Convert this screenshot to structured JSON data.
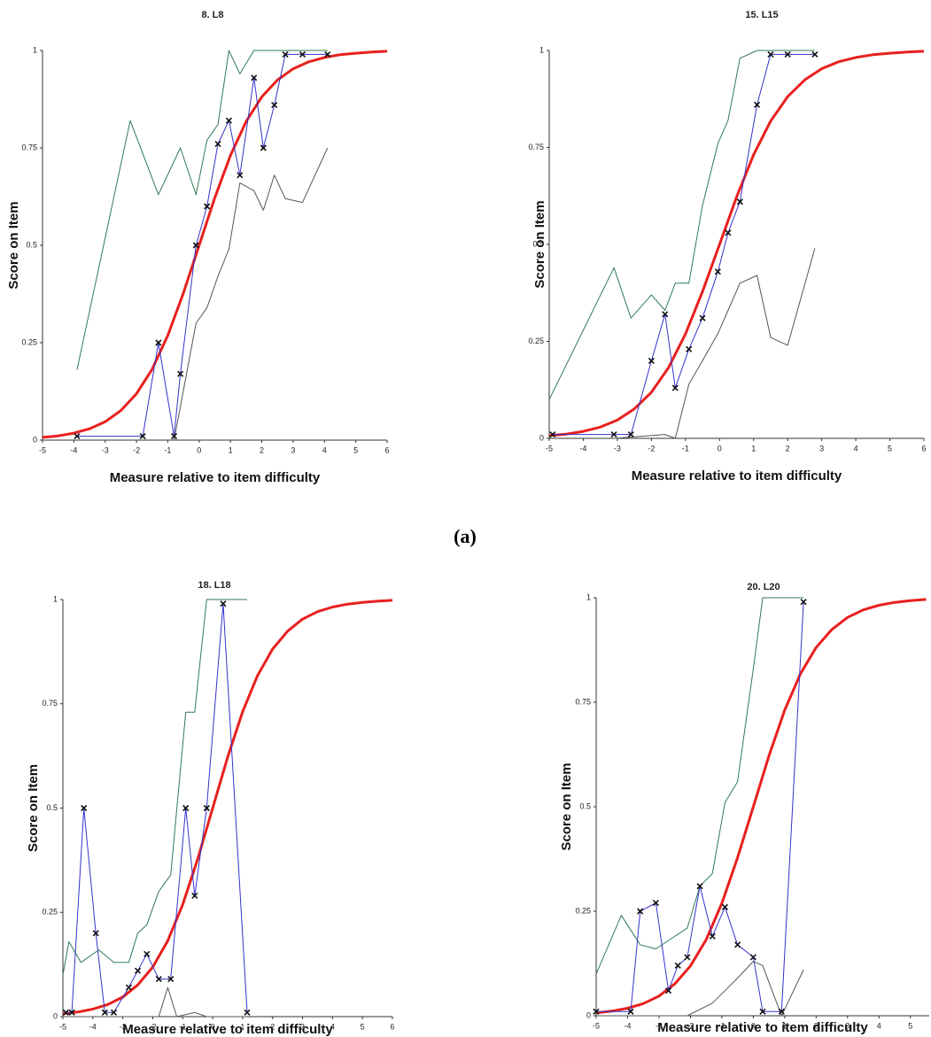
{
  "chart_data": [
    {
      "type": "line",
      "title": "8. L8",
      "xlabel": "Measure relative to item difficulty",
      "ylabel": "Score on Item",
      "xlim": [
        -5,
        6
      ],
      "xticks": [
        -5,
        -4,
        -3,
        -2,
        -1,
        0,
        1,
        2,
        3,
        4,
        5,
        6
      ],
      "ylim": [
        0,
        1
      ],
      "yticks": [
        0,
        0.25,
        0.5,
        0.75,
        1
      ],
      "series": [
        {
          "color": "#2f7a55",
          "x": [
            -3.9,
            -2.2,
            -1.3,
            -0.6,
            -0.1,
            0.25,
            0.6,
            0.95,
            1.3,
            1.75,
            4.1
          ],
          "values": [
            0.18,
            0.82,
            0.63,
            0.75,
            0.63,
            0.77,
            0.81,
            1.0,
            0.94,
            1.0,
            1.0
          ]
        },
        {
          "color": "#555555",
          "x": [
            -0.8,
            -0.1,
            0.25,
            0.6,
            0.95,
            1.3,
            1.75,
            2.05,
            2.4,
            2.75,
            3.3,
            4.1
          ],
          "values": [
            0.0,
            0.3,
            0.34,
            0.42,
            0.49,
            0.66,
            0.64,
            0.59,
            0.68,
            0.62,
            0.61,
            0.75
          ]
        },
        {
          "color": "#e8201e",
          "width": 3,
          "x": [
            -5,
            -4.5,
            -4,
            -3.5,
            -3,
            -2.5,
            -2,
            -1.5,
            -1,
            -0.5,
            0,
            0.5,
            1,
            1.5,
            2,
            2.5,
            3,
            3.5,
            4,
            4.5,
            5,
            5.5,
            6
          ],
          "values": [
            0.007,
            0.011,
            0.018,
            0.029,
            0.047,
            0.076,
            0.119,
            0.182,
            0.269,
            0.378,
            0.5,
            0.622,
            0.731,
            0.818,
            0.881,
            0.924,
            0.953,
            0.971,
            0.982,
            0.989,
            0.993,
            0.996,
            0.998
          ]
        },
        {
          "color": "#3333cc",
          "marker": "x",
          "x": [
            -3.9,
            -1.8,
            -1.3,
            -0.8,
            -0.6,
            -0.1,
            0.25,
            0.6,
            0.95,
            1.3,
            1.75,
            2.05,
            2.4,
            2.75,
            3.3,
            4.1
          ],
          "values": [
            0.01,
            0.01,
            0.25,
            0.01,
            0.17,
            0.5,
            0.6,
            0.76,
            0.82,
            0.68,
            0.93,
            0.75,
            0.86,
            0.99,
            0.99,
            0.99
          ]
        }
      ]
    },
    {
      "type": "line",
      "title": "15. L15",
      "xlabel": "Measure relative to item difficulty",
      "ylabel": "Score on Item",
      "xlim": [
        -5,
        6
      ],
      "xticks": [
        -5,
        -4,
        -3,
        -2,
        -1,
        0,
        1,
        2,
        3,
        4,
        5,
        6
      ],
      "ylim": [
        0,
        1
      ],
      "yticks": [
        0,
        0.25,
        0.5,
        0.75,
        1
      ],
      "series": [
        {
          "color": "#2f7a55",
          "x": [
            -5,
            -3.1,
            -2.6,
            -2.0,
            -1.6,
            -1.3,
            -0.9,
            -0.5,
            -0.05,
            0.25,
            0.6,
            1.1,
            2.8
          ],
          "values": [
            0.1,
            0.44,
            0.31,
            0.37,
            0.33,
            0.4,
            0.4,
            0.6,
            0.76,
            0.82,
            0.98,
            1.0,
            1.0
          ]
        },
        {
          "color": "#555555",
          "x": [
            -3.1,
            -1.6,
            -1.3,
            -0.9,
            -0.5,
            -0.05,
            0.25,
            0.6,
            1.1,
            1.5,
            2.0,
            2.8
          ],
          "values": [
            0.0,
            0.01,
            0.0,
            0.14,
            0.2,
            0.27,
            0.33,
            0.4,
            0.42,
            0.26,
            0.24,
            0.49
          ]
        },
        {
          "color": "#e8201e",
          "width": 3,
          "x": [
            -5,
            -4.5,
            -4,
            -3.5,
            -3,
            -2.5,
            -2,
            -1.5,
            -1,
            -0.5,
            0,
            0.5,
            1,
            1.5,
            2,
            2.5,
            3,
            3.5,
            4,
            4.5,
            5,
            5.5,
            6
          ],
          "values": [
            0.007,
            0.011,
            0.018,
            0.029,
            0.047,
            0.076,
            0.119,
            0.182,
            0.269,
            0.378,
            0.5,
            0.622,
            0.731,
            0.818,
            0.881,
            0.924,
            0.953,
            0.971,
            0.982,
            0.989,
            0.993,
            0.996,
            0.998
          ]
        },
        {
          "color": "#3333cc",
          "marker": "x",
          "x": [
            -4.9,
            -3.1,
            -2.6,
            -2.0,
            -1.6,
            -1.3,
            -0.9,
            -0.5,
            -0.05,
            0.25,
            0.6,
            1.1,
            1.5,
            2.0,
            2.8
          ],
          "values": [
            0.01,
            0.01,
            0.01,
            0.2,
            0.32,
            0.13,
            0.23,
            0.31,
            0.43,
            0.53,
            0.61,
            0.86,
            0.99,
            0.99,
            0.99
          ]
        }
      ]
    },
    {
      "type": "line",
      "title": "18. L18",
      "xlabel": "Measure relative to item difficulty",
      "ylabel": "Score on Item",
      "xlim": [
        -5,
        6
      ],
      "xticks": [
        -5,
        -4,
        -3,
        -2,
        -1,
        0,
        1,
        2,
        3,
        4,
        5,
        6
      ],
      "ylim": [
        0,
        1
      ],
      "yticks": [
        0,
        0.25,
        0.5,
        0.75,
        1
      ],
      "series": [
        {
          "color": "#2f7a55",
          "x": [
            -5,
            -4.8,
            -4.4,
            -3.8,
            -3.3,
            -2.8,
            -2.5,
            -2.2,
            -1.8,
            -1.4,
            -0.9,
            -0.6,
            -0.2,
            1.15
          ],
          "values": [
            0.1,
            0.18,
            0.13,
            0.16,
            0.13,
            0.13,
            0.2,
            0.22,
            0.3,
            0.34,
            0.73,
            0.73,
            1.0,
            1.0
          ]
        },
        {
          "color": "#555555",
          "x": [
            -5,
            -1.8,
            -1.5,
            -1.2,
            -0.6,
            -0.2,
            1.15
          ],
          "values": [
            0.0,
            0.0,
            0.07,
            0.0,
            0.01,
            0.0,
            0.0
          ]
        },
        {
          "color": "#e8201e",
          "width": 3,
          "x": [
            -5,
            -4.5,
            -4,
            -3.5,
            -3,
            -2.5,
            -2,
            -1.5,
            -1,
            -0.5,
            0,
            0.5,
            1,
            1.5,
            2,
            2.5,
            3,
            3.5,
            4,
            4.5,
            5,
            5.5,
            6
          ],
          "values": [
            0.007,
            0.011,
            0.018,
            0.029,
            0.047,
            0.076,
            0.119,
            0.182,
            0.269,
            0.378,
            0.5,
            0.622,
            0.731,
            0.818,
            0.881,
            0.924,
            0.953,
            0.971,
            0.982,
            0.989,
            0.993,
            0.996,
            0.998
          ]
        },
        {
          "color": "#3333cc",
          "marker": "x",
          "x": [
            -4.9,
            -4.7,
            -4.3,
            -3.9,
            -3.6,
            -3.3,
            -2.8,
            -2.5,
            -2.2,
            -1.8,
            -1.4,
            -0.9,
            -0.6,
            -0.2,
            0.35,
            1.15
          ],
          "values": [
            0.01,
            0.01,
            0.5,
            0.2,
            0.01,
            0.01,
            0.07,
            0.11,
            0.15,
            0.09,
            0.09,
            0.5,
            0.29,
            0.5,
            0.99,
            0.01
          ]
        }
      ]
    },
    {
      "type": "line",
      "title": "20. L20",
      "xlabel": "Measure relative to item difficulty",
      "ylabel": "Score on Item",
      "xlim": [
        -5,
        5.6
      ],
      "xticks": [
        -5,
        -4,
        -3,
        -2,
        -1,
        0,
        1,
        2,
        3,
        4,
        5
      ],
      "ylim": [
        0,
        1
      ],
      "yticks": [
        0,
        0.25,
        0.5,
        0.75,
        1
      ],
      "series": [
        {
          "color": "#2f7a55",
          "x": [
            -5,
            -4.2,
            -3.6,
            -3.1,
            -2.7,
            -2.1,
            -1.7,
            -1.3,
            -0.9,
            -0.5,
            0,
            0.3,
            1.6
          ],
          "values": [
            0.1,
            0.24,
            0.17,
            0.16,
            0.18,
            0.21,
            0.31,
            0.34,
            0.51,
            0.56,
            0.83,
            1.0,
            1.0
          ]
        },
        {
          "color": "#555555",
          "x": [
            -5,
            -2.1,
            -1.3,
            -0.9,
            -0.5,
            0,
            0.3,
            0.9,
            1.6
          ],
          "values": [
            0.0,
            0.0,
            0.03,
            0.06,
            0.09,
            0.13,
            0.12,
            0.0,
            0.11
          ]
        },
        {
          "color": "#e8201e",
          "width": 3,
          "x": [
            -5,
            -4.5,
            -4,
            -3.5,
            -3,
            -2.5,
            -2,
            -1.5,
            -1,
            -0.5,
            0,
            0.5,
            1,
            1.5,
            2,
            2.5,
            3,
            3.5,
            4,
            4.5,
            5,
            5.5
          ],
          "values": [
            0.007,
            0.011,
            0.018,
            0.029,
            0.047,
            0.076,
            0.119,
            0.182,
            0.269,
            0.378,
            0.5,
            0.622,
            0.731,
            0.818,
            0.881,
            0.924,
            0.953,
            0.971,
            0.982,
            0.989,
            0.993,
            0.996
          ]
        },
        {
          "color": "#3333cc",
          "marker": "x",
          "x": [
            -5,
            -3.9,
            -3.6,
            -3.1,
            -2.7,
            -2.4,
            -2.1,
            -1.7,
            -1.3,
            -0.9,
            -0.5,
            0,
            0.3,
            0.9,
            1.6
          ],
          "values": [
            0.01,
            0.01,
            0.25,
            0.27,
            0.06,
            0.12,
            0.14,
            0.31,
            0.19,
            0.26,
            0.17,
            0.14,
            0.01,
            0.01,
            0.99
          ]
        }
      ]
    }
  ],
  "annotation": "(a)"
}
